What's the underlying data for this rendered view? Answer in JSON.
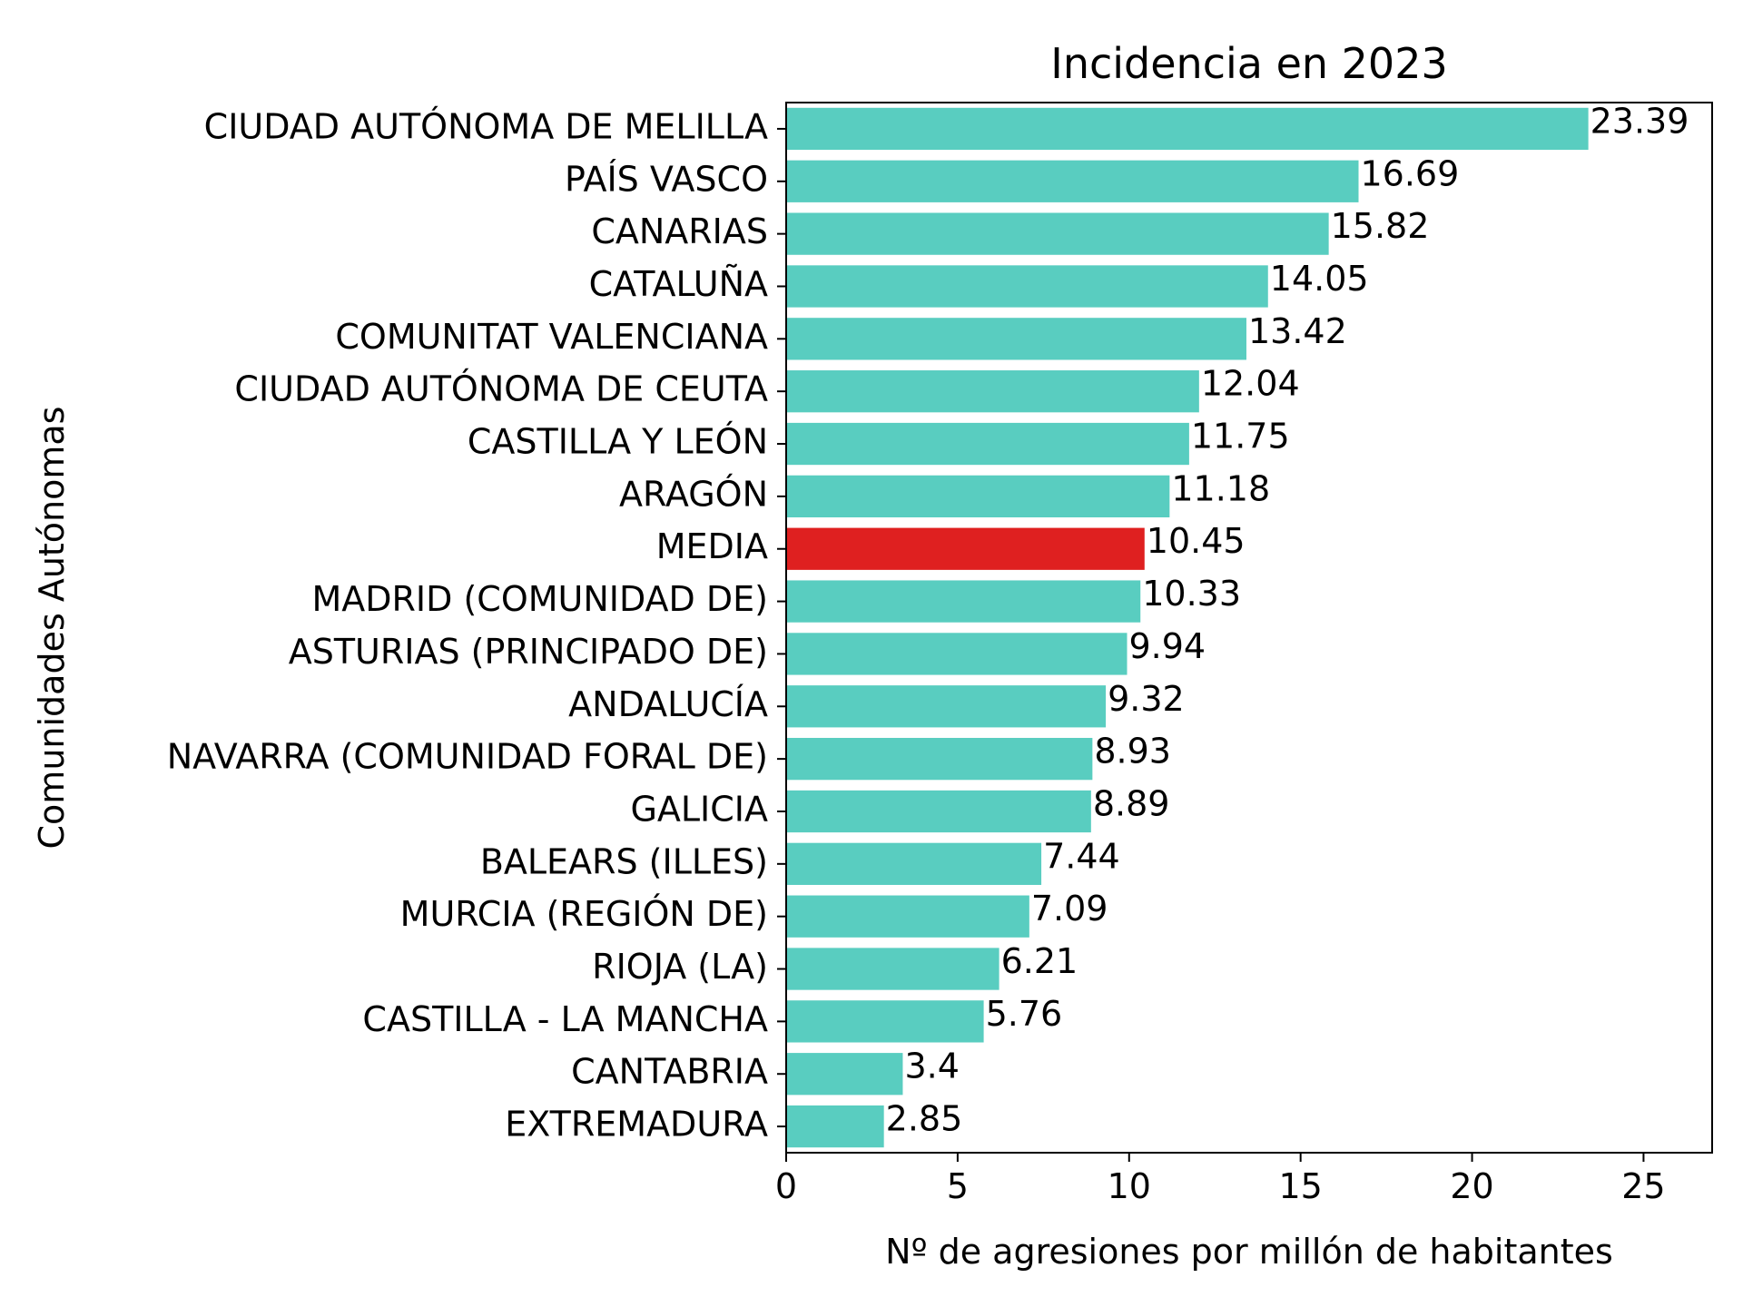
{
  "chart_data": {
    "type": "bar",
    "orientation": "horizontal",
    "title": "Incidencia en 2023",
    "xlabel": "Nº de agresiones por millón de habitantes",
    "ylabel": "Comunidades Autónomas",
    "xlim": [
      0,
      27
    ],
    "xticks": [
      0,
      5,
      10,
      15,
      20,
      25
    ],
    "grid": false,
    "legend": "none",
    "colors": {
      "default": "#59CDC0",
      "highlight": "#DF2020"
    },
    "categories": [
      "CIUDAD AUTÓNOMA DE MELILLA",
      "PAÍS VASCO",
      "CANARIAS",
      "CATALUÑA",
      "COMUNITAT VALENCIANA",
      "CIUDAD AUTÓNOMA DE CEUTA",
      "CASTILLA Y LEÓN",
      "ARAGÓN",
      "MEDIA",
      "MADRID (COMUNIDAD DE)",
      "ASTURIAS (PRINCIPADO DE)",
      "ANDALUCÍA",
      "NAVARRA (COMUNIDAD FORAL DE)",
      "GALICIA",
      "BALEARS (ILLES)",
      "MURCIA (REGIÓN DE)",
      "RIOJA (LA)",
      "CASTILLA - LA MANCHA",
      "CANTABRIA",
      "EXTREMADURA"
    ],
    "values": [
      23.39,
      16.69,
      15.82,
      14.05,
      13.42,
      12.04,
      11.75,
      11.18,
      10.45,
      10.33,
      9.94,
      9.32,
      8.93,
      8.89,
      7.44,
      7.09,
      6.21,
      5.76,
      3.4,
      2.85
    ],
    "value_labels": [
      "23.39",
      "16.69",
      "15.82",
      "14.05",
      "13.42",
      "12.04",
      "11.75",
      "11.18",
      "10.45",
      "10.33",
      "9.94",
      "9.32",
      "8.93",
      "8.89",
      "7.44",
      "7.09",
      "6.21",
      "5.76",
      "3.4",
      "2.85"
    ],
    "highlight_category": "MEDIA"
  }
}
